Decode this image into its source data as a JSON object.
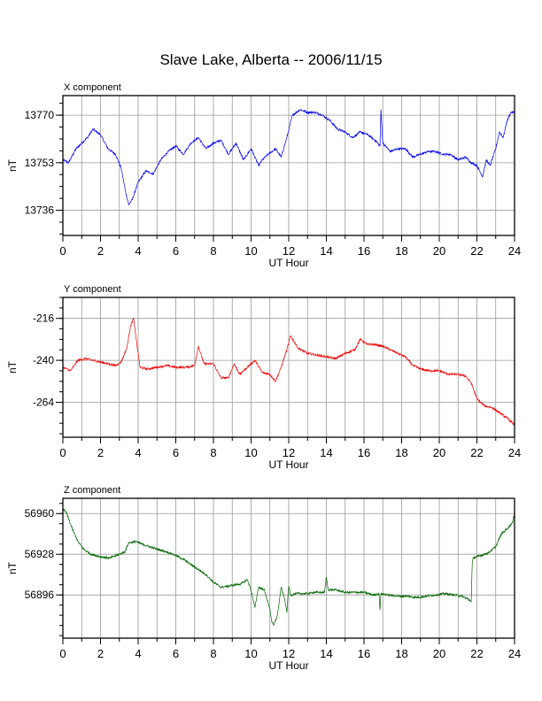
{
  "page": {
    "title": "Slave Lake, Alberta -- 2006/11/15"
  },
  "chart_data": [
    {
      "type": "line",
      "panel_label": "X component",
      "xlabel": "UT Hour",
      "ylabel": "nT",
      "xlim": [
        0,
        24
      ],
      "ylim": [
        13727,
        13777
      ],
      "x_ticks": [
        0,
        2,
        4,
        6,
        8,
        10,
        12,
        14,
        16,
        18,
        20,
        22,
        24
      ],
      "y_ticks": [
        13736,
        13753,
        13770
      ],
      "grid": true,
      "color": "#0000ee",
      "x": [
        0,
        0.3,
        0.7,
        1.0,
        1.3,
        1.6,
        2.0,
        2.4,
        2.8,
        3.1,
        3.35,
        3.5,
        3.7,
        4.0,
        4.4,
        4.8,
        5.2,
        5.6,
        6.0,
        6.4,
        6.8,
        7.2,
        7.6,
        8.0,
        8.4,
        8.8,
        9.2,
        9.6,
        10.0,
        10.4,
        10.6,
        10.9,
        11.3,
        11.6,
        11.9,
        12.2,
        12.6,
        13.0,
        13.4,
        13.8,
        14.2,
        14.6,
        15.0,
        15.4,
        15.8,
        16.2,
        16.6,
        16.85,
        16.9,
        17.0,
        17.4,
        17.8,
        18.2,
        18.6,
        19.0,
        19.4,
        19.8,
        20.2,
        20.6,
        21.0,
        21.4,
        21.7,
        22.0,
        22.3,
        22.5,
        22.7,
        23.0,
        23.2,
        23.4,
        23.6,
        23.8,
        24.0
      ],
      "values": [
        13754,
        13753,
        13758,
        13760,
        13762,
        13765,
        13763,
        13758,
        13756,
        13751,
        13742,
        13738,
        13740,
        13746,
        13750,
        13749,
        13754,
        13757,
        13759,
        13756,
        13760,
        13762,
        13758,
        13760,
        13761,
        13756,
        13760,
        13754,
        13758,
        13752,
        13754,
        13756,
        13758,
        13755,
        13762,
        13770,
        13772,
        13771,
        13771,
        13770,
        13768,
        13765,
        13764,
        13762,
        13764,
        13763,
        13761,
        13759,
        13772,
        13760,
        13757,
        13758,
        13758,
        13755,
        13756,
        13757,
        13757,
        13756,
        13756,
        13754,
        13755,
        13753,
        13752,
        13748,
        13754,
        13752,
        13758,
        13764,
        13762,
        13768,
        13771,
        13771
      ]
    },
    {
      "type": "line",
      "panel_label": "Y component",
      "xlabel": "UT Hour",
      "ylabel": "nT",
      "xlim": [
        0,
        24
      ],
      "ylim": [
        -284,
        -204
      ],
      "x_ticks": [
        0,
        2,
        4,
        6,
        8,
        10,
        12,
        14,
        16,
        18,
        20,
        22,
        24
      ],
      "y_ticks": [
        -216,
        -240,
        -264
      ],
      "grid": true,
      "color": "#ee0000",
      "x": [
        0,
        0.4,
        0.8,
        1.2,
        1.6,
        2.0,
        2.4,
        2.8,
        3.1,
        3.4,
        3.6,
        3.75,
        3.9,
        4.1,
        4.5,
        5.0,
        5.5,
        6.0,
        6.5,
        7.0,
        7.2,
        7.5,
        8.0,
        8.4,
        8.8,
        9.1,
        9.4,
        9.8,
        10.2,
        10.6,
        11.0,
        11.3,
        11.6,
        11.9,
        12.1,
        12.5,
        13.0,
        13.5,
        14.0,
        14.5,
        15.0,
        15.5,
        15.8,
        16.2,
        16.6,
        17.0,
        17.4,
        17.8,
        18.2,
        18.6,
        19.0,
        19.5,
        20.0,
        20.5,
        21.0,
        21.4,
        21.7,
        22.0,
        22.4,
        22.8,
        23.2,
        23.6,
        24.0
      ],
      "values": [
        -244,
        -246,
        -240,
        -239,
        -240,
        -241,
        -242,
        -243,
        -241,
        -233,
        -220,
        -216,
        -228,
        -244,
        -245,
        -244,
        -243,
        -244,
        -244,
        -243,
        -232,
        -242,
        -242,
        -250,
        -250,
        -242,
        -248,
        -244,
        -240,
        -247,
        -248,
        -252,
        -244,
        -234,
        -226,
        -233,
        -236,
        -237,
        -238,
        -239,
        -236,
        -234,
        -228,
        -231,
        -231,
        -232,
        -234,
        -236,
        -238,
        -243,
        -245,
        -246,
        -246,
        -248,
        -248,
        -249,
        -253,
        -262,
        -266,
        -267,
        -270,
        -273,
        -277
      ]
    },
    {
      "type": "line",
      "panel_label": "Z component",
      "xlabel": "UT Hour",
      "ylabel": "nT",
      "xlim": [
        0,
        24
      ],
      "ylim": [
        56862,
        56972
      ],
      "x_ticks": [
        0,
        2,
        4,
        6,
        8,
        10,
        12,
        14,
        16,
        18,
        20,
        22,
        24
      ],
      "y_ticks": [
        56896,
        56928,
        56960
      ],
      "grid": true,
      "color": "#006600",
      "x": [
        0,
        0.2,
        0.5,
        0.8,
        1.1,
        1.5,
        2.0,
        2.5,
        3.0,
        3.3,
        3.5,
        3.9,
        4.2,
        4.6,
        5.0,
        5.5,
        6.0,
        6.4,
        6.8,
        7.2,
        7.6,
        8.0,
        8.4,
        8.8,
        9.2,
        9.5,
        9.8,
        10.0,
        10.2,
        10.4,
        10.7,
        11.0,
        11.1,
        11.2,
        11.4,
        11.6,
        11.8,
        11.9,
        12.0,
        12.1,
        12.4,
        12.7,
        13.0,
        13.3,
        13.6,
        13.9,
        14.0,
        14.1,
        14.5,
        15.0,
        15.5,
        16.0,
        16.5,
        16.8,
        16.85,
        16.9,
        17.3,
        17.8,
        18.3,
        18.8,
        19.3,
        19.8,
        20.3,
        20.8,
        21.2,
        21.5,
        21.7,
        21.75,
        21.8,
        22.2,
        22.6,
        23.0,
        23.3,
        23.6,
        23.9,
        24.0
      ],
      "values": [
        56964,
        56960,
        56948,
        56938,
        56932,
        56928,
        56926,
        56925,
        56928,
        56930,
        56937,
        56938,
        56936,
        56934,
        56932,
        56930,
        56927,
        56924,
        56920,
        56916,
        56912,
        56906,
        56902,
        56903,
        56904,
        56905,
        56908,
        56900,
        56886,
        56902,
        56900,
        56885,
        56875,
        56872,
        56880,
        56902,
        56892,
        56882,
        56903,
        56896,
        56897,
        56897,
        56897,
        56898,
        56898,
        56898,
        56910,
        56900,
        56900,
        56898,
        56898,
        56898,
        56896,
        56897,
        56884,
        56897,
        56896,
        56895,
        56895,
        56894,
        56895,
        56896,
        56897,
        56896,
        56895,
        56893,
        56891,
        56920,
        56925,
        56927,
        56929,
        56934,
        56944,
        56948,
        56953,
        56960
      ]
    }
  ]
}
